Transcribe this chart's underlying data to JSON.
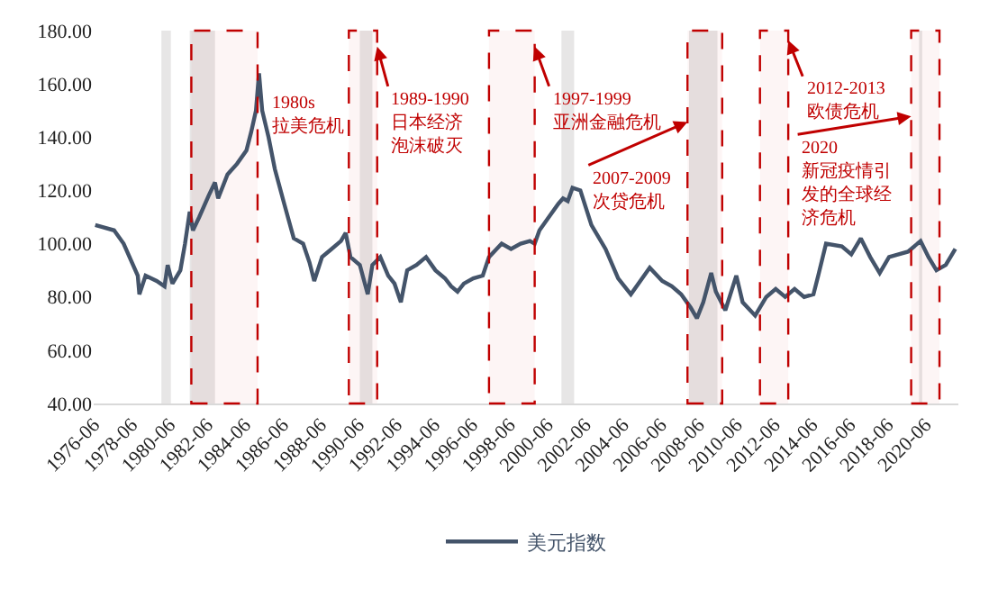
{
  "chart_data": {
    "type": "line",
    "x": [
      "1976-07",
      "1977-07",
      "1978-01",
      "1978-10",
      "1978-11",
      "1979-03",
      "1979-10",
      "1980-03",
      "1980-05",
      "1980-08",
      "1981-01",
      "1981-04",
      "1981-07",
      "1981-09",
      "1982-01",
      "1982-07",
      "1982-11",
      "1983-01",
      "1983-07",
      "1984-01",
      "1984-07",
      "1984-10",
      "1985-01",
      "1985-03",
      "1985-05",
      "1985-09",
      "1986-01",
      "1986-07",
      "1987-01",
      "1987-07",
      "1987-11",
      "1988-02",
      "1988-07",
      "1989-01",
      "1989-07",
      "1989-10",
      "1990-01",
      "1990-07",
      "1990-12",
      "1991-03",
      "1991-08",
      "1992-01",
      "1992-05",
      "1992-09",
      "1993-01",
      "1993-07",
      "1994-01",
      "1994-07",
      "1995-01",
      "1995-05",
      "1995-09",
      "1996-01",
      "1996-07",
      "1997-01",
      "1997-05",
      "1998-01",
      "1998-07",
      "1999-01",
      "1999-07",
      "1999-10",
      "2000-01",
      "2000-07",
      "2001-01",
      "2001-04",
      "2001-07",
      "2001-10",
      "2002-03",
      "2002-10",
      "2003-07",
      "2004-03",
      "2004-11",
      "2005-11",
      "2006-07",
      "2007-01",
      "2007-07",
      "2008-01",
      "2008-05",
      "2008-09",
      "2009-02",
      "2009-05",
      "2009-11",
      "2010-06",
      "2010-10",
      "2011-06",
      "2012-01",
      "2012-07",
      "2013-01",
      "2013-07",
      "2014-01",
      "2014-07",
      "2014-10",
      "2015-03",
      "2016-01",
      "2016-07",
      "2017-01",
      "2017-07",
      "2018-01",
      "2018-07",
      "2019-01",
      "2019-07",
      "2020-03",
      "2020-08",
      "2021-01",
      "2021-07",
      "2022-01"
    ],
    "series": [
      {
        "name": "美元指数",
        "color": "#44546a",
        "values": [
          107,
          105,
          100,
          88,
          81,
          88,
          86,
          84,
          92,
          85,
          90,
          100,
          112,
          105,
          110,
          118,
          123,
          117,
          126,
          130,
          135,
          142,
          150,
          164,
          150,
          140,
          128,
          115,
          102,
          100,
          93,
          86,
          95,
          98,
          101,
          104,
          95,
          92,
          81,
          92,
          95,
          88,
          85,
          78,
          90,
          92,
          95,
          90,
          87,
          84,
          82,
          85,
          87,
          88,
          95,
          100,
          98,
          100,
          101,
          100,
          105,
          110,
          115,
          117,
          116,
          121,
          120,
          107,
          98,
          87,
          81,
          91,
          86,
          84,
          81,
          76,
          72,
          78,
          89,
          82,
          75,
          88,
          78,
          73,
          80,
          83,
          80,
          83,
          80,
          81,
          88,
          100,
          99,
          96,
          102,
          95,
          89,
          95,
          96,
          97,
          101,
          95,
          90,
          92,
          98
        ]
      }
    ],
    "xlim": [
      "1976-06",
      "2022-03"
    ],
    "xticks": [
      "1976-06",
      "1978-06",
      "1980-06",
      "1982-06",
      "1984-06",
      "1986-06",
      "1988-06",
      "1990-06",
      "1992-06",
      "1994-06",
      "1996-06",
      "1998-06",
      "2000-06",
      "2002-06",
      "2004-06",
      "2006-06",
      "2008-06",
      "2010-06",
      "2012-06",
      "2014-06",
      "2016-06",
      "2018-06",
      "2020-06"
    ],
    "ylim": [
      40,
      180
    ],
    "yticks": [
      {
        "value": 40,
        "label": "40.00"
      },
      {
        "value": 60,
        "label": "60.00"
      },
      {
        "value": 80,
        "label": "80.00"
      },
      {
        "value": 100,
        "label": "100.00"
      },
      {
        "value": 120,
        "label": "120.00"
      },
      {
        "value": 140,
        "label": "140.00"
      },
      {
        "value": 160,
        "label": "160.00"
      },
      {
        "value": 180,
        "label": "180.00"
      }
    ],
    "bands": [
      {
        "axis": "x",
        "from": "1980-01",
        "to": "1980-07",
        "color": "#e7e6e6"
      },
      {
        "axis": "x",
        "from": "1981-07",
        "to": "1982-11",
        "color": "#e7e6e6"
      },
      {
        "axis": "x",
        "from": "1990-07",
        "to": "1991-03",
        "color": "#e7e6e6"
      },
      {
        "axis": "x",
        "from": "2001-03",
        "to": "2001-11",
        "color": "#e7e6e6"
      },
      {
        "axis": "x",
        "from": "2007-12",
        "to": "2009-06",
        "color": "#e7e6e6"
      },
      {
        "axis": "x",
        "from": "2020-02",
        "to": "2020-04",
        "color": "#e7e6e6"
      },
      {
        "axis": "x",
        "from": "1981-08",
        "to": "1985-02",
        "label": "1980s\n拉美危机",
        "color": "#c00000"
      },
      {
        "axis": "x",
        "from": "1989-12",
        "to": "1991-06",
        "label": "1989-1990\n日本经济泡沫破灭",
        "color": "#c00000"
      },
      {
        "axis": "x",
        "from": "1997-05",
        "to": "1999-10",
        "label": "1997-1999\n亚洲金融危机",
        "color": "#c00000"
      },
      {
        "axis": "x",
        "from": "2007-11",
        "to": "2009-09",
        "label": "2007-2009\n次贷危机",
        "color": "#c00000"
      },
      {
        "axis": "x",
        "from": "2011-09",
        "to": "2013-03",
        "label": "2012-2013\n欧债危机",
        "color": "#c00000"
      },
      {
        "axis": "x",
        "from": "2019-09",
        "to": "2021-03",
        "label": "2020\n新冠疫情引发的全球经济危机",
        "color": "#c00000"
      }
    ],
    "grid": false,
    "legend": "bottom",
    "marker": "none",
    "line_style": "solid"
  }
}
